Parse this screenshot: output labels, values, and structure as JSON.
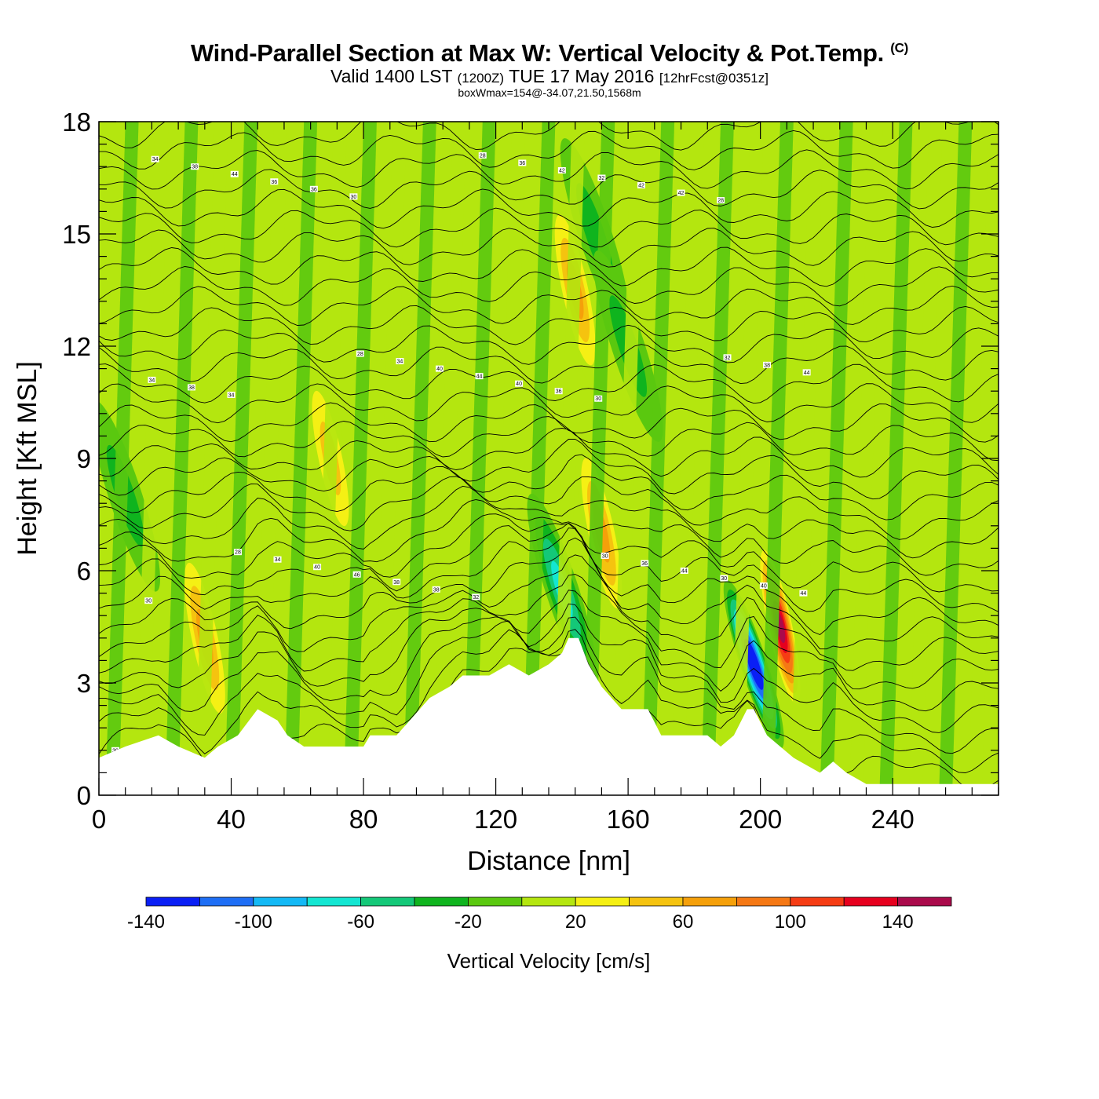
{
  "header": {
    "title": "Wind-Parallel Section at Max W: Vertical Velocity & Pot.Temp.",
    "copyright": "(C)",
    "valid_prefix": "Valid 1400 LST",
    "valid_utc": "(1200Z)",
    "valid_date": "TUE 17 May 2016",
    "forecast_info": "[12hrFcst@0351z]",
    "box_info": "boxWmax=154@-34.07,21.50,1568m"
  },
  "chart_data": {
    "type": "heatmap",
    "xlabel": "Distance [nm]",
    "ylabel": "Height [Kft MSL]",
    "xlim": [
      0,
      272
    ],
    "ylim": [
      0,
      18
    ],
    "x_ticks": [
      0,
      40,
      80,
      120,
      160,
      200,
      240
    ],
    "y_ticks": [
      0,
      3,
      6,
      9,
      12,
      15,
      18
    ],
    "colorbar": {
      "label": "Vertical Velocity [cm/s]",
      "bounds": [
        -140,
        160
      ],
      "step": 20,
      "tick_labels": [
        "-140",
        "-100",
        "-60",
        "-20",
        "20",
        "60",
        "100",
        "140"
      ],
      "colors": [
        "#0a1ff5",
        "#1e6ef5",
        "#14b9f5",
        "#14e6d2",
        "#14c878",
        "#0fb41e",
        "#5ac80f",
        "#b4e60f",
        "#f5f014",
        "#f5c30f",
        "#f5a00a",
        "#f57814",
        "#f53c14",
        "#e6001e",
        "#aa0a4b"
      ]
    },
    "terrain_top_kft": [
      [
        0,
        1.0
      ],
      [
        8,
        1.3
      ],
      [
        18,
        1.6
      ],
      [
        24,
        1.3
      ],
      [
        32,
        1.0
      ],
      [
        36,
        1.3
      ],
      [
        42,
        1.6
      ],
      [
        48,
        2.3
      ],
      [
        54,
        2.0
      ],
      [
        57,
        1.6
      ],
      [
        62,
        1.3
      ],
      [
        80,
        1.3
      ],
      [
        82,
        1.6
      ],
      [
        90,
        1.6
      ],
      [
        94,
        2.0
      ],
      [
        100,
        2.6
      ],
      [
        106,
        2.9
      ],
      [
        110,
        3.2
      ],
      [
        118,
        3.2
      ],
      [
        124,
        3.5
      ],
      [
        130,
        3.2
      ],
      [
        136,
        3.5
      ],
      [
        140,
        3.8
      ],
      [
        142,
        4.2
      ],
      [
        145,
        4.2
      ],
      [
        148,
        3.5
      ],
      [
        152,
        2.9
      ],
      [
        158,
        2.3
      ],
      [
        166,
        2.3
      ],
      [
        170,
        1.6
      ],
      [
        184,
        1.6
      ],
      [
        188,
        1.3
      ],
      [
        192,
        1.6
      ],
      [
        196,
        2.3
      ],
      [
        198,
        2.3
      ],
      [
        202,
        1.6
      ],
      [
        206,
        1.3
      ],
      [
        210,
        1.0
      ],
      [
        218,
        0.6
      ],
      [
        222,
        0.9
      ],
      [
        226,
        0.6
      ],
      [
        232,
        0.3
      ],
      [
        272,
        0.3
      ]
    ],
    "w_features": [
      {
        "x": 32,
        "y": 4.2,
        "w": 70
      },
      {
        "x": 70,
        "y": 9.0,
        "w": 40
      },
      {
        "x": 144,
        "y": 13.5,
        "w": 60
      },
      {
        "x": 152,
        "y": 7.0,
        "w": 70
      },
      {
        "x": 140,
        "y": 5.5,
        "w": -70
      },
      {
        "x": 198,
        "y": 3.5,
        "w": -140
      },
      {
        "x": 206,
        "y": 4.5,
        "w": 154
      },
      {
        "x": 150,
        "y": 15.0,
        "w": -30
      },
      {
        "x": 160,
        "y": 12.0,
        "w": -30
      },
      {
        "x": 8,
        "y": 8.0,
        "w": -20
      }
    ],
    "theta_contour_labels": [
      "30",
      "28",
      "28",
      "28",
      "30",
      "32",
      "34",
      "34",
      "34",
      "36",
      "36",
      "38",
      "38",
      "40",
      "40",
      "42",
      "44",
      "44",
      "44",
      "46",
      "44",
      "32",
      "30",
      "34",
      "36",
      "38",
      "40",
      "42",
      "40",
      "38",
      "36",
      "38",
      "36",
      "42",
      "44",
      "34",
      "30",
      "32",
      "30",
      "28",
      "30"
    ]
  }
}
